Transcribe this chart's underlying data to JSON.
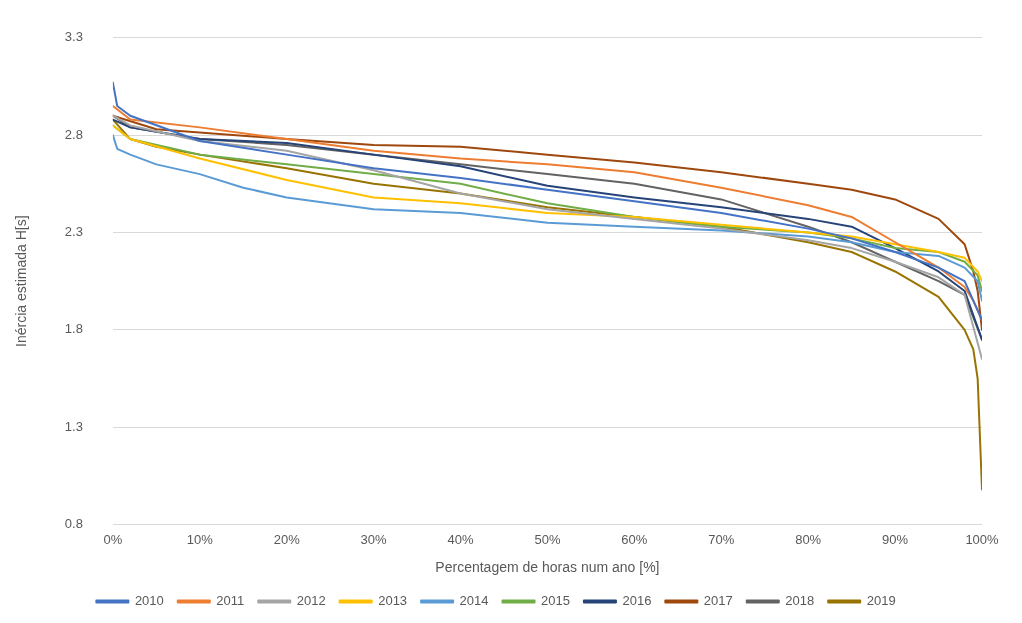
{
  "chart_data": {
    "type": "line",
    "xlabel": "Percentagem de horas num ano [%]",
    "ylabel": "Inércia estimada H[s]",
    "xlim": [
      0,
      100
    ],
    "ylim": [
      0.8,
      3.3
    ],
    "xticks": [
      {
        "value": 0,
        "label": "0%"
      },
      {
        "value": 10,
        "label": "10%"
      },
      {
        "value": 20,
        "label": "20%"
      },
      {
        "value": 30,
        "label": "30%"
      },
      {
        "value": 40,
        "label": "40%"
      },
      {
        "value": 50,
        "label": "50%"
      },
      {
        "value": 60,
        "label": "60%"
      },
      {
        "value": 70,
        "label": "70%"
      },
      {
        "value": 80,
        "label": "80%"
      },
      {
        "value": 90,
        "label": "90%"
      },
      {
        "value": 100,
        "label": "100%"
      }
    ],
    "yticks": [
      0.8,
      1.3,
      1.8,
      2.3,
      2.8,
      3.3
    ],
    "grid": "y",
    "legend": "bottom",
    "marker": "none",
    "line_style": "solid",
    "series": [
      {
        "name": "2010",
        "color": "#4472c4",
        "x": [
          0,
          0.5,
          2,
          10,
          20,
          30,
          40,
          50,
          60,
          70,
          80,
          85,
          90,
          95,
          98,
          100
        ],
        "values": [
          3.07,
          2.95,
          2.9,
          2.77,
          2.7,
          2.63,
          2.58,
          2.52,
          2.46,
          2.4,
          2.32,
          2.27,
          2.2,
          2.12,
          2.05,
          1.85
        ]
      },
      {
        "name": "2011",
        "color": "#ed7d31",
        "x": [
          0,
          2,
          10,
          20,
          30,
          40,
          50,
          60,
          70,
          80,
          85,
          90,
          95,
          98,
          99,
          100
        ],
        "values": [
          2.95,
          2.88,
          2.84,
          2.78,
          2.72,
          2.68,
          2.65,
          2.61,
          2.53,
          2.44,
          2.38,
          2.25,
          2.12,
          2.02,
          1.95,
          1.85
        ]
      },
      {
        "name": "2012",
        "color": "#a5a5a5",
        "x": [
          0,
          2,
          10,
          20,
          30,
          40,
          50,
          60,
          70,
          80,
          85,
          90,
          95,
          98,
          100
        ],
        "values": [
          2.9,
          2.85,
          2.77,
          2.72,
          2.62,
          2.5,
          2.42,
          2.37,
          2.32,
          2.26,
          2.22,
          2.15,
          2.07,
          1.98,
          1.65
        ]
      },
      {
        "name": "2013",
        "color": "#ffc000",
        "x": [
          0,
          2,
          10,
          20,
          30,
          40,
          50,
          60,
          70,
          80,
          85,
          90,
          95,
          98,
          99.5,
          100
        ],
        "values": [
          2.85,
          2.78,
          2.68,
          2.57,
          2.48,
          2.45,
          2.4,
          2.38,
          2.34,
          2.3,
          2.28,
          2.24,
          2.2,
          2.17,
          2.1,
          2.05
        ]
      },
      {
        "name": "2014",
        "color": "#5b9bd5",
        "x": [
          0,
          0.5,
          2,
          5,
          10,
          15,
          20,
          30,
          40,
          50,
          60,
          70,
          80,
          85,
          90,
          95,
          98,
          99.5,
          100
        ],
        "values": [
          2.8,
          2.73,
          2.7,
          2.65,
          2.6,
          2.53,
          2.48,
          2.42,
          2.4,
          2.35,
          2.33,
          2.31,
          2.28,
          2.25,
          2.2,
          2.18,
          2.12,
          2.05,
          1.95
        ]
      },
      {
        "name": "2015",
        "color": "#70ad47",
        "x": [
          0,
          2,
          10,
          20,
          30,
          40,
          50,
          60,
          70,
          80,
          85,
          90,
          95,
          98,
          99.5,
          100
        ],
        "values": [
          2.85,
          2.78,
          2.7,
          2.65,
          2.6,
          2.55,
          2.45,
          2.38,
          2.33,
          2.3,
          2.27,
          2.22,
          2.2,
          2.15,
          2.08,
          2.0
        ]
      },
      {
        "name": "2016",
        "color": "#264478",
        "x": [
          0,
          2,
          10,
          20,
          30,
          40,
          50,
          60,
          70,
          80,
          85,
          90,
          95,
          98,
          100
        ],
        "values": [
          2.88,
          2.84,
          2.78,
          2.76,
          2.7,
          2.64,
          2.54,
          2.48,
          2.43,
          2.37,
          2.33,
          2.22,
          2.1,
          2.0,
          1.75
        ]
      },
      {
        "name": "2017",
        "color": "#9e480e",
        "x": [
          0,
          5,
          20,
          30,
          40,
          50,
          60,
          70,
          80,
          85,
          90,
          95,
          98,
          99,
          99.5,
          100
        ],
        "values": [
          2.9,
          2.83,
          2.78,
          2.75,
          2.74,
          2.7,
          2.66,
          2.61,
          2.55,
          2.52,
          2.47,
          2.37,
          2.24,
          2.1,
          2.0,
          1.8
        ]
      },
      {
        "name": "2018",
        "color": "#636363",
        "x": [
          0,
          2,
          10,
          20,
          30,
          40,
          50,
          60,
          70,
          80,
          85,
          90,
          95,
          98,
          100
        ],
        "values": [
          2.9,
          2.84,
          2.78,
          2.75,
          2.7,
          2.65,
          2.6,
          2.55,
          2.47,
          2.33,
          2.25,
          2.15,
          2.05,
          1.98,
          1.75
        ]
      },
      {
        "name": "2019",
        "color": "#997300",
        "x": [
          0,
          2,
          5,
          10,
          20,
          30,
          40,
          50,
          60,
          70,
          80,
          85,
          90,
          95,
          98,
          99,
          99.5,
          100
        ],
        "values": [
          2.88,
          2.78,
          2.74,
          2.7,
          2.63,
          2.55,
          2.5,
          2.43,
          2.38,
          2.33,
          2.25,
          2.2,
          2.1,
          1.97,
          1.8,
          1.7,
          1.55,
          0.98
        ]
      }
    ]
  }
}
